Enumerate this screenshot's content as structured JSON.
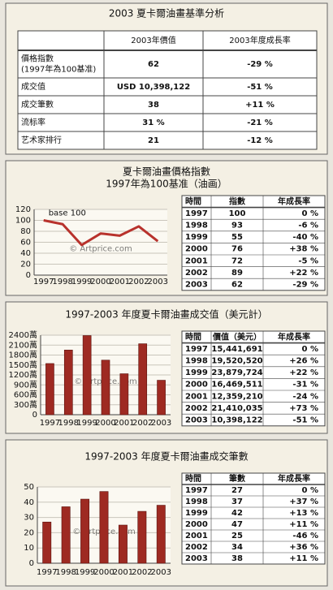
{
  "summary_table": {
    "title": "2003 夏卡爾油畫基準分析",
    "header": [
      "2003年價值",
      "2003年度成長率"
    ],
    "rows": [
      [
        [
          "價格指數",
          "(1997年為100基准)"
        ],
        "62",
        "-29 %"
      ],
      [
        "成交值",
        "USD 10,398,122",
        "-51 %"
      ],
      [
        "成交筆數",
        "38",
        "+11 %"
      ],
      [
        "流标率",
        "31 %",
        "-21 %"
      ],
      [
        "艺术家排行",
        "21",
        "-12 %"
      ]
    ]
  },
  "chart_data": [
    {
      "type": "line",
      "title": "夏卡爾油畫價格指數",
      "subtitle": "1997年為100基准（油画）",
      "categories": [
        "1997",
        "1998",
        "1999",
        "2000",
        "2001",
        "2002",
        "2003"
      ],
      "values": [
        100,
        93,
        55,
        76,
        72,
        89,
        62
      ],
      "color": "#b8322c",
      "ylim": [
        0,
        120
      ],
      "yticks": [
        0,
        20,
        40,
        60,
        80,
        100,
        120
      ],
      "grid": true,
      "annotation": "base 100",
      "watermark": "© Artprice.com",
      "table": {
        "header": [
          "時間",
          "指數",
          "年成長率"
        ],
        "rows": [
          [
            "1997",
            "100",
            "0 %"
          ],
          [
            "1998",
            "93",
            "-6 %"
          ],
          [
            "1999",
            "55",
            "-40 %"
          ],
          [
            "2000",
            "76",
            "+38 %"
          ],
          [
            "2001",
            "72",
            "-5 %"
          ],
          [
            "2002",
            "89",
            "+22 %"
          ],
          [
            "2003",
            "62",
            "-29 %"
          ]
        ]
      }
    },
    {
      "type": "bar",
      "title": "1997-2003 年度夏卡爾油畫成交值（美元計）",
      "categories": [
        "1997",
        "1998",
        "1999",
        "2000",
        "2001",
        "2002",
        "2003"
      ],
      "values": [
        15441691,
        19520520,
        23879724,
        16469511,
        12359210,
        21410035,
        10398122
      ],
      "color": "#9e2a22",
      "ylim": [
        0,
        24000000
      ],
      "yticks": [
        0,
        {
          "value": 3000000,
          "label": "300萬"
        },
        {
          "value": 6000000,
          "label": "600萬"
        },
        {
          "value": 9000000,
          "label": "900萬"
        },
        {
          "value": 12000000,
          "label": "1200萬"
        },
        {
          "value": 15000000,
          "label": "1500萬"
        },
        {
          "value": 18000000,
          "label": "1800萬"
        },
        {
          "value": 21000000,
          "label": "2100萬"
        },
        {
          "value": 24000000,
          "label": "2400萬"
        }
      ],
      "grid": true,
      "watermark": "© Artprice.com",
      "table": {
        "header": [
          "時間",
          "價值（美元）",
          "年成長率"
        ],
        "rows": [
          [
            "1997",
            "15,441,691",
            "0 %"
          ],
          [
            "1998",
            "19,520,520",
            "+26 %"
          ],
          [
            "1999",
            "23,879,724",
            "+22 %"
          ],
          [
            "2000",
            "16,469,511",
            "-31 %"
          ],
          [
            "2001",
            "12,359,210",
            "-24 %"
          ],
          [
            "2002",
            "21,410,035",
            "+73 %"
          ],
          [
            "2003",
            "10,398,122",
            "-51 %"
          ]
        ]
      }
    },
    {
      "type": "bar",
      "title": "1997-2003 年度夏卡爾油畫成交筆數",
      "categories": [
        "1997",
        "1998",
        "1999",
        "2000",
        "2001",
        "2002",
        "2003"
      ],
      "values": [
        27,
        37,
        42,
        47,
        25,
        34,
        38
      ],
      "color": "#9e2a22",
      "ylim": [
        0,
        50
      ],
      "yticks": [
        0,
        10,
        20,
        30,
        40,
        50
      ],
      "grid": true,
      "watermark": "© Artprice.com",
      "table": {
        "header": [
          "時間",
          "筆數",
          "年成長率"
        ],
        "rows": [
          [
            "1997",
            "27",
            "0 %"
          ],
          [
            "1998",
            "37",
            "+37 %"
          ],
          [
            "1999",
            "42",
            "+13 %"
          ],
          [
            "2000",
            "47",
            "+11 %"
          ],
          [
            "2001",
            "25",
            "-46 %"
          ],
          [
            "2002",
            "34",
            "+36 %"
          ],
          [
            "2003",
            "38",
            "+11 %"
          ]
        ]
      }
    }
  ]
}
